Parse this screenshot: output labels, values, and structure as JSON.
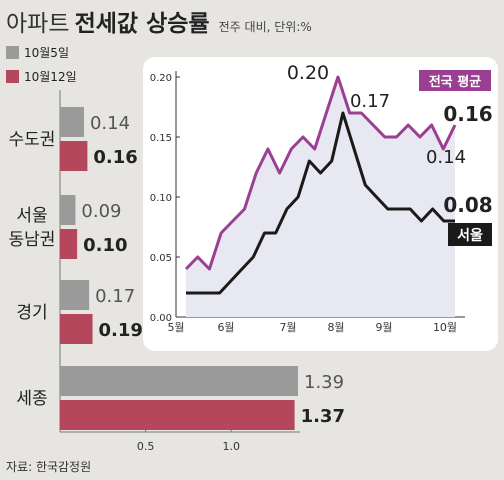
{
  "header": {
    "title_light": "아파트",
    "title_bold": "전세값 상승률",
    "subtitle": "전주 대비, 단위:%"
  },
  "legend": [
    {
      "label": "10월5일",
      "color": "#9a9a9a"
    },
    {
      "label": "10월12일",
      "color": "#b5475c"
    }
  ],
  "source": "자료: 한국감정원",
  "chart_data": [
    {
      "type": "bar",
      "orientation": "horizontal",
      "categories": [
        "수도권",
        "서울\n동남권",
        "경기",
        "세종"
      ],
      "series": [
        {
          "name": "10월5일",
          "values": [
            0.14,
            0.09,
            0.17,
            1.39
          ]
        },
        {
          "name": "10월12일",
          "values": [
            0.16,
            0.1,
            0.19,
            1.37
          ]
        }
      ],
      "value_labels": [
        [
          "0.14",
          "0.09",
          "0.17",
          "1.39"
        ],
        [
          "0.16",
          "0.10",
          "0.19",
          "1.37"
        ]
      ],
      "xlim": [
        0,
        1.39
      ],
      "xticks": [
        0.5,
        1.0
      ],
      "xtick_labels": [
        "0.5",
        "1.0"
      ],
      "legend": "top-left"
    },
    {
      "type": "line",
      "x_ticks": [
        "5월",
        "6월",
        "7월",
        "8월",
        "9월",
        "10월"
      ],
      "ylim": [
        0,
        0.2
      ],
      "yticks": [
        0,
        0.05,
        0.1,
        0.15,
        0.2
      ],
      "ytick_labels": [
        "0.00",
        "0.05",
        "0.10",
        "0.15",
        "0.20"
      ],
      "series": [
        {
          "name": "전국 평균",
          "color": "#9b3f93",
          "values": [
            0.04,
            0.05,
            0.04,
            0.07,
            0.08,
            0.09,
            0.12,
            0.14,
            0.12,
            0.14,
            0.15,
            0.14,
            0.17,
            0.2,
            0.17,
            0.17,
            0.16,
            0.15,
            0.15,
            0.16,
            0.15,
            0.16,
            0.14,
            0.16
          ]
        },
        {
          "name": "서울",
          "color": "#1a1a1a",
          "values": [
            0.02,
            0.02,
            0.02,
            0.02,
            0.03,
            0.04,
            0.05,
            0.07,
            0.07,
            0.09,
            0.1,
            0.13,
            0.12,
            0.13,
            0.17,
            0.14,
            0.11,
            0.1,
            0.09,
            0.09,
            0.09,
            0.08,
            0.09,
            0.08,
            0.08
          ]
        }
      ],
      "annotations": [
        "0.20",
        "0.17",
        "0.14",
        "0.16",
        "0.08"
      ],
      "grid": false
    }
  ]
}
